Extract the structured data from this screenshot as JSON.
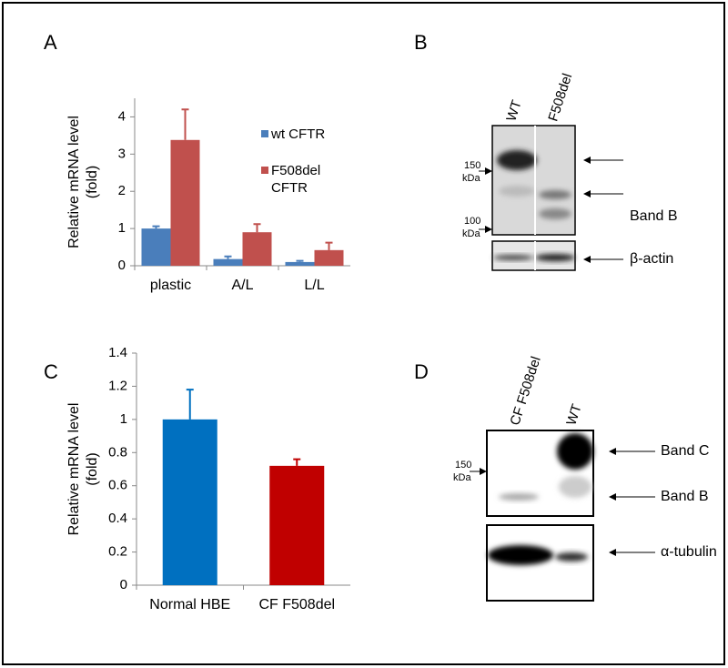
{
  "chart_data": [
    {
      "type": "bar",
      "panel": "A",
      "ylabel": [
        "Relative mRNA level",
        "(fold)"
      ],
      "categories": [
        "plastic",
        "A/L",
        "L/L"
      ],
      "series": [
        {
          "name": "wt CFTR",
          "color": "#4a7ebb",
          "values": [
            1.0,
            0.18,
            0.1
          ],
          "errors": [
            0.06,
            0.07,
            0.03
          ]
        },
        {
          "name": "F508del CFTR",
          "color": "#c0504d",
          "values": [
            3.38,
            0.9,
            0.42
          ],
          "errors": [
            0.82,
            0.22,
            0.2
          ]
        }
      ],
      "ylim": [
        0,
        4.5
      ],
      "yticks": [
        0,
        1,
        2,
        3,
        4
      ]
    },
    {
      "type": "bar",
      "panel": "C",
      "ylabel": [
        "Relative mRNA level",
        "(fold)"
      ],
      "categories": [
        "Normal HBE",
        "CF F508del"
      ],
      "series": [
        {
          "colors": [
            "#0070c0",
            "#c00000"
          ],
          "values": [
            1.0,
            0.72
          ],
          "errors": [
            0.18,
            0.04
          ]
        }
      ],
      "ylim": [
        0,
        1.4
      ],
      "yticks": [
        0,
        0.2,
        0.4,
        0.6,
        0.8,
        1,
        1.2,
        1.4
      ]
    }
  ],
  "blot_b": {
    "panel": "B",
    "lanes": [
      "WT",
      "F508del"
    ],
    "markers": [
      [
        "150",
        "kDa"
      ],
      [
        "100",
        "kDa"
      ]
    ],
    "bands": [
      "Band B",
      "β-actin"
    ]
  },
  "blot_d": {
    "panel": "D",
    "lanes": [
      "CF F508del",
      "WT"
    ],
    "markers": [
      [
        "150",
        "kDa"
      ]
    ],
    "bands": [
      "Band C",
      "Band B",
      "α-tubulin"
    ]
  }
}
